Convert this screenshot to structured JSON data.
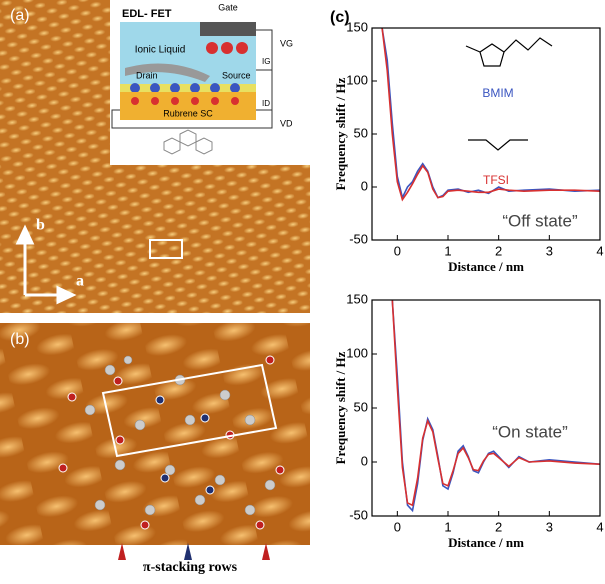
{
  "panels": {
    "a": "(a)",
    "b": "(b)",
    "c": "(c)"
  },
  "inset": {
    "title": "EDL- FET",
    "gate": "Gate",
    "ionic_liquid": "Ionic Liquid",
    "drain": "Drain",
    "source": "Source",
    "semiconductor": "Rubrene SC",
    "vg": "VG",
    "ig": "IG",
    "id": "ID",
    "vd": "VD"
  },
  "lattice": {
    "b": "b",
    "a": "a"
  },
  "pi_stacking": "π-stacking rows",
  "chart_data": [
    {
      "type": "line",
      "xlabel": "Distance / nm",
      "ylabel": "Frequency shift / Hz",
      "annotations": [
        "BMIM",
        "TFSI",
        "“Off state”"
      ],
      "x": [
        -0.3,
        -0.2,
        -0.1,
        0,
        0.1,
        0.2,
        0.3,
        0.4,
        0.5,
        0.6,
        0.7,
        0.8,
        0.9,
        1.0,
        1.2,
        1.4,
        1.6,
        1.8,
        2.0,
        2.2,
        2.5,
        3,
        3.5,
        4
      ],
      "series": [
        {
          "color": "#3a55c0",
          "values": [
            150,
            120,
            60,
            10,
            -10,
            0,
            5,
            15,
            22,
            15,
            0,
            -10,
            -8,
            -3,
            -2,
            -5,
            -3,
            -6,
            0,
            -4,
            -3,
            -2,
            -4,
            -3
          ]
        },
        {
          "color": "#d83030",
          "values": [
            150,
            110,
            50,
            5,
            -12,
            -5,
            3,
            12,
            20,
            14,
            -2,
            -10,
            -9,
            -4,
            -3,
            -4,
            -5,
            -5,
            -2,
            -3,
            -4,
            -3,
            -3,
            -4
          ]
        }
      ],
      "xlim": [
        -0.5,
        4
      ],
      "xticks": [
        0,
        1,
        2,
        3,
        4
      ],
      "ylim": [
        -50,
        150
      ],
      "yticks": [
        -50,
        0,
        50,
        100,
        150
      ]
    },
    {
      "type": "line",
      "xlabel": "Distance / nm",
      "ylabel": "Frequency shift / Hz",
      "annotations": [
        "“On state”"
      ],
      "x": [
        -0.1,
        0,
        0.1,
        0.2,
        0.3,
        0.4,
        0.5,
        0.6,
        0.7,
        0.8,
        0.9,
        1.0,
        1.1,
        1.2,
        1.3,
        1.4,
        1.5,
        1.6,
        1.7,
        1.8,
        1.9,
        2.0,
        2.2,
        2.4,
        2.6,
        3,
        3.5,
        4
      ],
      "series": [
        {
          "color": "#3a55c0",
          "values": [
            150,
            80,
            0,
            -40,
            -45,
            -20,
            20,
            40,
            30,
            5,
            -22,
            -25,
            -10,
            10,
            15,
            5,
            -8,
            -10,
            0,
            8,
            10,
            5,
            -5,
            5,
            0,
            2,
            0,
            -2
          ]
        },
        {
          "color": "#d83030",
          "values": [
            150,
            70,
            -5,
            -38,
            -40,
            -15,
            22,
            38,
            28,
            3,
            -20,
            -22,
            -8,
            8,
            13,
            4,
            -7,
            -8,
            1,
            7,
            8,
            4,
            -4,
            4,
            0,
            1,
            -1,
            -2
          ]
        }
      ],
      "xlim": [
        -0.5,
        4
      ],
      "xticks": [
        0,
        1,
        2,
        3,
        4
      ],
      "ylim": [
        -50,
        150
      ],
      "yticks": [
        -50,
        0,
        50,
        100,
        150
      ]
    }
  ]
}
